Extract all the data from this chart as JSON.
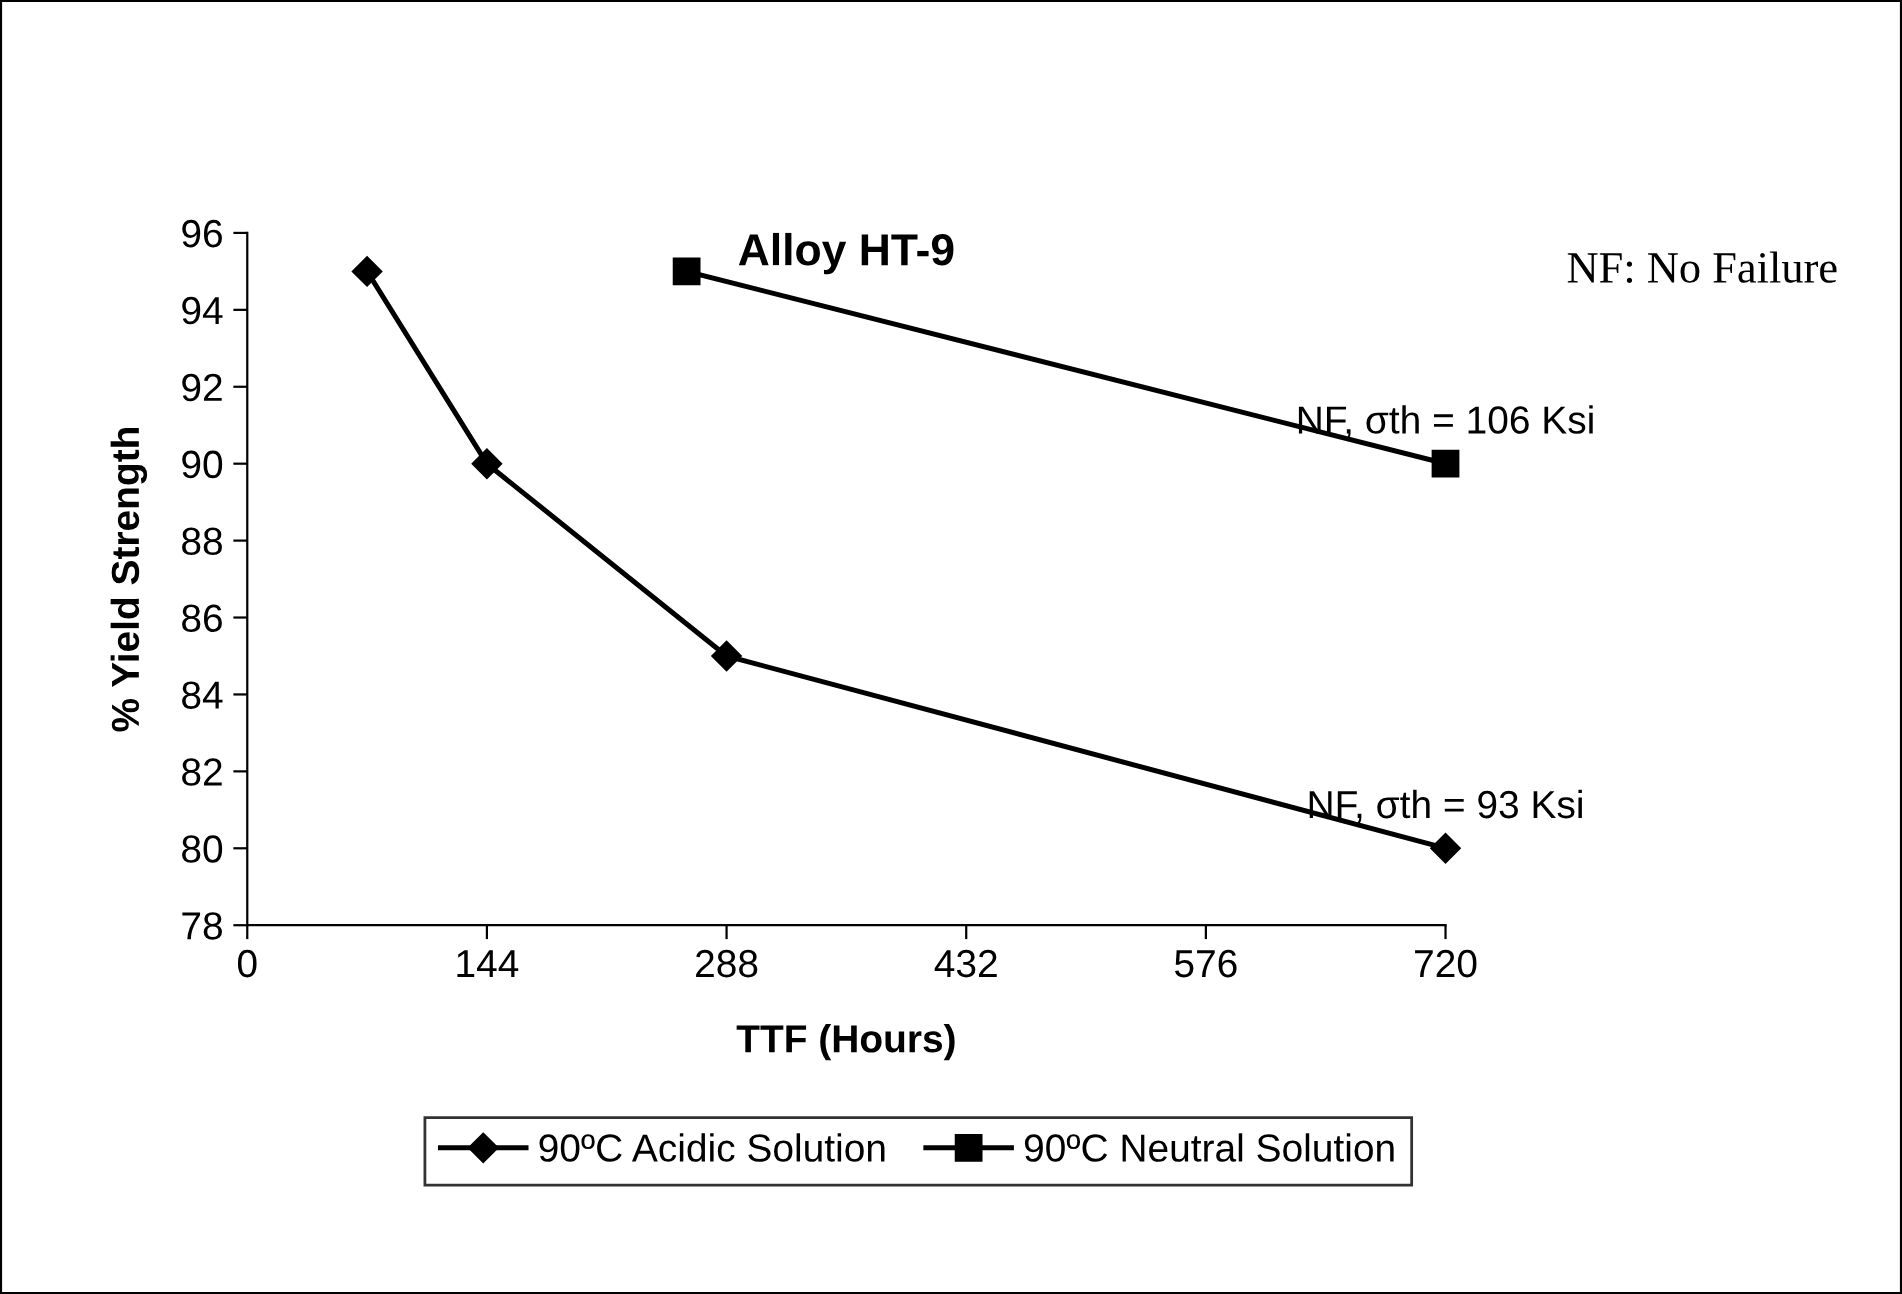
{
  "chart_data": {
    "type": "line",
    "title": "Alloy HT-9",
    "xlabel": "TTF (Hours)",
    "ylabel": "% Yield Strength",
    "xlim": [
      0,
      720
    ],
    "xticks": [
      0,
      144,
      288,
      432,
      576,
      720
    ],
    "ylim": [
      78,
      96
    ],
    "yticks": [
      78,
      80,
      82,
      84,
      86,
      88,
      90,
      92,
      94,
      96
    ],
    "grid": false,
    "legend": "bottom",
    "series": [
      {
        "name": "90ºC Acidic Solution",
        "color": "#000000",
        "marker": "diamond",
        "x": [
          72,
          144,
          288,
          720
        ],
        "values": [
          95,
          90,
          85,
          80
        ]
      },
      {
        "name": "90ºC Neutral Solution",
        "color": "#000000",
        "marker": "square",
        "x": [
          264,
          720
        ],
        "values": [
          95,
          90
        ]
      }
    ],
    "annotations": [
      {
        "text": "NF, σth = 106 Ksi",
        "x": 720,
        "y": 90
      },
      {
        "text": "NF, σth = 93 Ksi",
        "x": 720,
        "y": 80
      },
      "NF: No Failure"
    ]
  }
}
